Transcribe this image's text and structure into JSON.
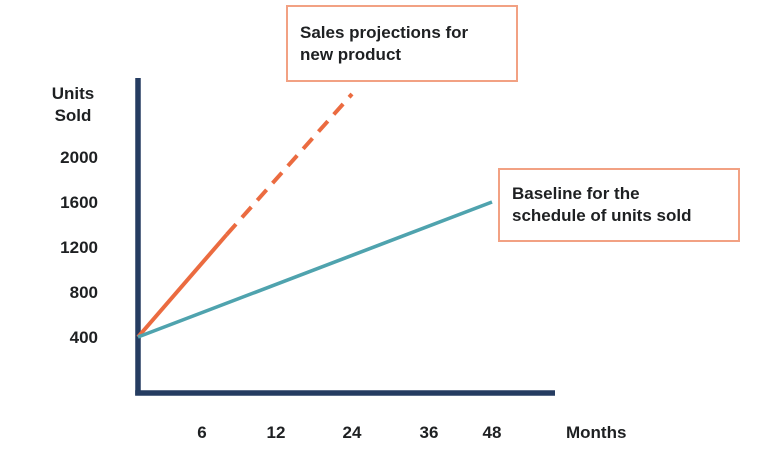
{
  "chart_data": {
    "type": "line",
    "title": "",
    "xlabel": "Months",
    "ylabel": "Units Sold",
    "x_ticks": [
      6,
      12,
      24,
      36,
      48
    ],
    "y_ticks": [
      2000,
      1600,
      1200,
      800,
      400
    ],
    "x_axis_note": "labeled ticks are evenly spaced (6, 12, 24, 36, 48 months)",
    "ylim": [
      0,
      2560
    ],
    "grid": false,
    "legend_position": "none (labeled via callout boxes)",
    "series": [
      {
        "name": "Sales projections for new product",
        "color": "#eb6b40",
        "line_style": "solid then dashed (projection)",
        "segments": [
          {
            "style": "solid",
            "points": [
              {
                "month": 0,
                "units": 400
              },
              {
                "month": 8,
                "units": 1310
              }
            ]
          },
          {
            "style": "dashed",
            "points": [
              {
                "month": 8,
                "units": 1310
              },
              {
                "month": 24,
                "units": 2560
              }
            ]
          }
        ]
      },
      {
        "name": "Baseline for the schedule of units sold",
        "color": "#4fa3ae",
        "line_style": "solid",
        "segments": [
          {
            "style": "solid",
            "points": [
              {
                "month": 0,
                "units": 400
              },
              {
                "month": 48,
                "units": 1600
              }
            ]
          }
        ]
      }
    ],
    "annotations": [
      {
        "text": "Sales projections for\nnew product",
        "border_color": "#f2a183",
        "target_series": "Sales projections for new product"
      },
      {
        "text": "Baseline for the\nschedule of units sold",
        "border_color": "#f2a183",
        "target_series": "Baseline for the schedule of units sold"
      }
    ],
    "style": {
      "axis_color": "#253c61",
      "text_color": "#1e2022",
      "projection_color": "#eb6b40",
      "baseline_color": "#4fa3ae",
      "callout_border_color": "#f2a183",
      "background": "#ffffff"
    }
  }
}
